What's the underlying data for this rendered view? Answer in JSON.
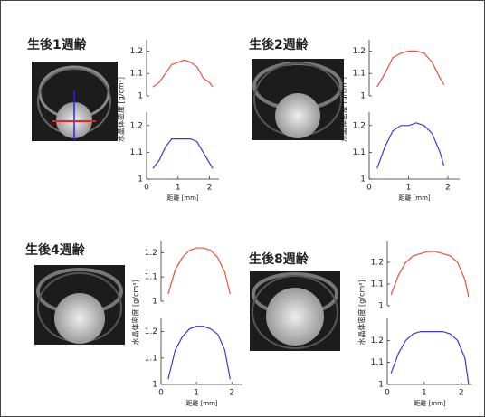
{
  "chart_data": [
    {
      "type": "line",
      "title": "生後1週齢",
      "ylabel": "水晶体密度 [g/cm³]",
      "color": "#e8533c",
      "x": [
        0.2,
        0.4,
        0.6,
        0.8,
        1.0,
        1.2,
        1.4,
        1.6,
        1.8,
        2.0,
        2.1
      ],
      "values": [
        1.04,
        1.06,
        1.1,
        1.14,
        1.15,
        1.16,
        1.15,
        1.13,
        1.08,
        1.06,
        1.04
      ],
      "xlim": [
        0,
        2.3
      ],
      "ylim": [
        1,
        1.25
      ],
      "yticks": [
        1,
        1.1,
        1.2
      ]
    },
    {
      "type": "line",
      "xlabel": "距離 [mm]",
      "color": "#3a3ad8",
      "x": [
        0.2,
        0.4,
        0.6,
        0.8,
        1.0,
        1.2,
        1.4,
        1.6,
        1.8,
        2.0,
        2.1
      ],
      "values": [
        1.04,
        1.07,
        1.12,
        1.15,
        1.15,
        1.15,
        1.15,
        1.14,
        1.1,
        1.06,
        1.04
      ],
      "xlim": [
        0,
        2.3
      ],
      "ylim": [
        1,
        1.25
      ],
      "yticks": [
        1,
        1.1,
        1.2
      ],
      "xticks": [
        0,
        1,
        2
      ]
    },
    {
      "type": "line",
      "title": "生後2週齢",
      "ylabel": "水晶体密度 [g/cm³]",
      "color": "#e8533c",
      "x": [
        0.2,
        0.4,
        0.6,
        0.8,
        1.0,
        1.2,
        1.4,
        1.6,
        1.8,
        1.9
      ],
      "values": [
        1.04,
        1.1,
        1.17,
        1.19,
        1.2,
        1.2,
        1.19,
        1.15,
        1.08,
        1.05
      ],
      "xlim": [
        0,
        2.3
      ],
      "ylim": [
        1,
        1.25
      ],
      "yticks": [
        1,
        1.1,
        1.2
      ]
    },
    {
      "type": "line",
      "xlabel": "距離 [mm]",
      "color": "#3a3ad8",
      "x": [
        0.2,
        0.4,
        0.6,
        0.8,
        1.0,
        1.2,
        1.4,
        1.6,
        1.8,
        1.9
      ],
      "values": [
        1.04,
        1.12,
        1.18,
        1.2,
        1.2,
        1.21,
        1.2,
        1.17,
        1.1,
        1.05
      ],
      "xlim": [
        0,
        2.3
      ],
      "ylim": [
        1,
        1.25
      ],
      "yticks": [
        1,
        1.1,
        1.2
      ],
      "xticks": [
        0,
        1,
        2
      ]
    },
    {
      "type": "line",
      "title": "生後4週齢",
      "ylabel": "水晶体密度 [g/cm³]",
      "color": "#e8533c",
      "x": [
        0.2,
        0.4,
        0.6,
        0.8,
        1.0,
        1.2,
        1.4,
        1.6,
        1.8,
        1.95
      ],
      "values": [
        1.03,
        1.13,
        1.18,
        1.21,
        1.22,
        1.22,
        1.21,
        1.18,
        1.12,
        1.03
      ],
      "xlim": [
        0,
        2.3
      ],
      "ylim": [
        1,
        1.25
      ],
      "yticks": [
        1,
        1.1,
        1.2
      ]
    },
    {
      "type": "line",
      "xlabel": "距離 [mm]",
      "color": "#3a3ad8",
      "x": [
        0.2,
        0.4,
        0.6,
        0.8,
        1.0,
        1.2,
        1.4,
        1.6,
        1.8,
        1.95
      ],
      "values": [
        1.02,
        1.13,
        1.18,
        1.21,
        1.22,
        1.22,
        1.21,
        1.19,
        1.13,
        1.02
      ],
      "xlim": [
        0,
        2.3
      ],
      "ylim": [
        1,
        1.25
      ],
      "yticks": [
        1,
        1.1,
        1.2
      ],
      "xticks": [
        0,
        1,
        2
      ]
    },
    {
      "type": "line",
      "title": "生後8週齢",
      "ylabel": "水晶体密度 [g/cm³]",
      "color": "#e8533c",
      "x": [
        0.1,
        0.3,
        0.5,
        0.7,
        0.9,
        1.1,
        1.3,
        1.5,
        1.7,
        1.9,
        2.1,
        2.2
      ],
      "values": [
        1.05,
        1.14,
        1.2,
        1.23,
        1.24,
        1.25,
        1.25,
        1.24,
        1.23,
        1.2,
        1.12,
        1.04
      ],
      "xlim": [
        0,
        2.3
      ],
      "ylim": [
        1,
        1.3
      ],
      "yticks": [
        1,
        1.1,
        1.2
      ]
    },
    {
      "type": "line",
      "xlabel": "距離 [mm]",
      "color": "#3a3ad8",
      "x": [
        0.1,
        0.3,
        0.5,
        0.7,
        0.9,
        1.1,
        1.3,
        1.5,
        1.7,
        1.9,
        2.1,
        2.2
      ],
      "values": [
        1.05,
        1.14,
        1.2,
        1.23,
        1.24,
        1.24,
        1.24,
        1.24,
        1.23,
        1.2,
        1.12,
        1.0
      ],
      "xlim": [
        0,
        2.3
      ],
      "ylim": [
        1,
        1.3
      ],
      "yticks": [
        1,
        1.1,
        1.2
      ],
      "xticks": [
        0,
        1,
        2
      ]
    }
  ]
}
